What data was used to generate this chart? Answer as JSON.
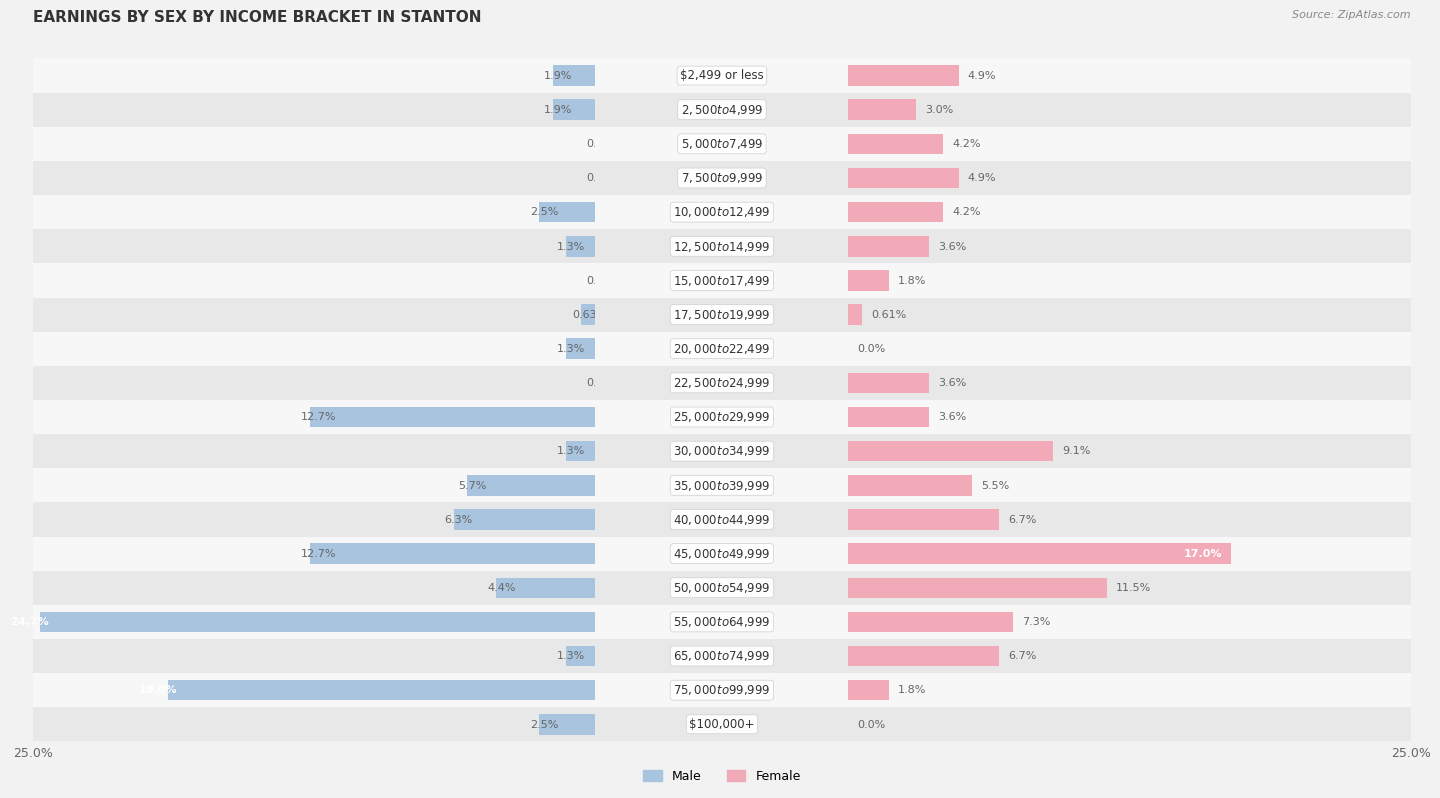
{
  "title": "EARNINGS BY SEX BY INCOME BRACKET IN STANTON",
  "source": "Source: ZipAtlas.com",
  "categories": [
    "$2,499 or less",
    "$2,500 to $4,999",
    "$5,000 to $7,499",
    "$7,500 to $9,999",
    "$10,000 to $12,499",
    "$12,500 to $14,999",
    "$15,000 to $17,499",
    "$17,500 to $19,999",
    "$20,000 to $22,499",
    "$22,500 to $24,999",
    "$25,000 to $29,999",
    "$30,000 to $34,999",
    "$35,000 to $39,999",
    "$40,000 to $44,999",
    "$45,000 to $49,999",
    "$50,000 to $54,999",
    "$55,000 to $64,999",
    "$65,000 to $74,999",
    "$75,000 to $99,999",
    "$100,000+"
  ],
  "male_values": [
    1.9,
    1.9,
    0.0,
    0.0,
    2.5,
    1.3,
    0.0,
    0.63,
    1.3,
    0.0,
    12.7,
    1.3,
    5.7,
    6.3,
    12.7,
    4.4,
    24.7,
    1.3,
    19.0,
    2.5
  ],
  "female_values": [
    4.9,
    3.0,
    4.2,
    4.9,
    4.2,
    3.6,
    1.8,
    0.61,
    0.0,
    3.6,
    3.6,
    9.1,
    5.5,
    6.7,
    17.0,
    11.5,
    7.3,
    6.7,
    1.8,
    0.0
  ],
  "male_color": "#a8c4de",
  "female_color": "#f2aab8",
  "axis_limit": 25.0,
  "bg_color": "#f0f0f0",
  "row_even_color": "#f7f7f7",
  "row_odd_color": "#e8e8e8",
  "label_font_size": 8.5,
  "value_font_size": 8.0,
  "bar_height": 0.6
}
